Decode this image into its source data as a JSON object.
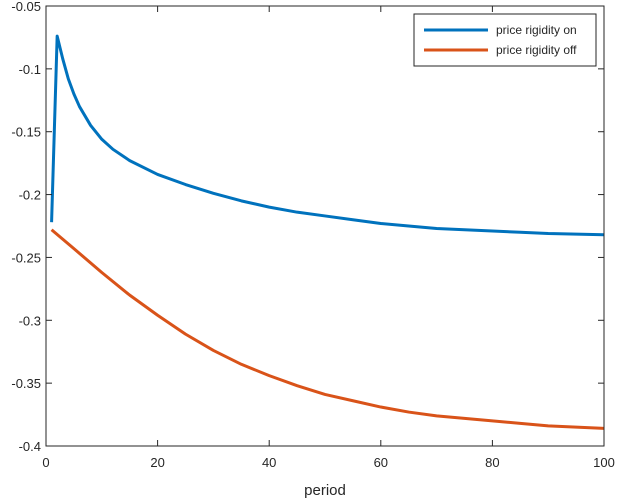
{
  "chart_data": {
    "type": "line",
    "title": "",
    "xlabel": "period",
    "ylabel": "",
    "xlim": [
      0,
      100
    ],
    "ylim": [
      -0.4,
      -0.05
    ],
    "x_ticks": [
      0,
      20,
      40,
      60,
      80,
      100
    ],
    "x_tick_labels": [
      "0",
      "20",
      "40",
      "60",
      "80",
      "100"
    ],
    "y_ticks": [
      -0.05,
      -0.1,
      -0.15,
      -0.2,
      -0.25,
      -0.3,
      -0.35,
      -0.4
    ],
    "y_tick_labels": [
      "-0.05",
      "-0.1",
      "-0.15",
      "-0.2",
      "-0.25",
      "-0.3",
      "-0.35",
      "-0.4"
    ],
    "grid": false,
    "legend_position": "top-right",
    "series": [
      {
        "name": "price rigidity on",
        "color": "#0072BD",
        "x": [
          1,
          2,
          3,
          4,
          5,
          6,
          8,
          10,
          12,
          15,
          20,
          25,
          30,
          35,
          40,
          45,
          50,
          55,
          60,
          65,
          70,
          75,
          80,
          85,
          90,
          95,
          100
        ],
        "y": [
          -0.222,
          -0.074,
          -0.092,
          -0.108,
          -0.12,
          -0.13,
          -0.145,
          -0.156,
          -0.164,
          -0.173,
          -0.184,
          -0.192,
          -0.199,
          -0.205,
          -0.21,
          -0.214,
          -0.217,
          -0.22,
          -0.223,
          -0.225,
          -0.227,
          -0.228,
          -0.229,
          -0.23,
          -0.231,
          -0.2315,
          -0.232
        ]
      },
      {
        "name": "price rigidity off",
        "color": "#D95319",
        "x": [
          1,
          5,
          10,
          15,
          20,
          25,
          30,
          35,
          40,
          45,
          50,
          55,
          60,
          65,
          70,
          75,
          80,
          85,
          90,
          95,
          100
        ],
        "y": [
          -0.228,
          -0.243,
          -0.262,
          -0.28,
          -0.296,
          -0.311,
          -0.324,
          -0.335,
          -0.344,
          -0.352,
          -0.359,
          -0.364,
          -0.369,
          -0.373,
          -0.376,
          -0.378,
          -0.38,
          -0.382,
          -0.384,
          -0.385,
          -0.386
        ]
      }
    ]
  }
}
